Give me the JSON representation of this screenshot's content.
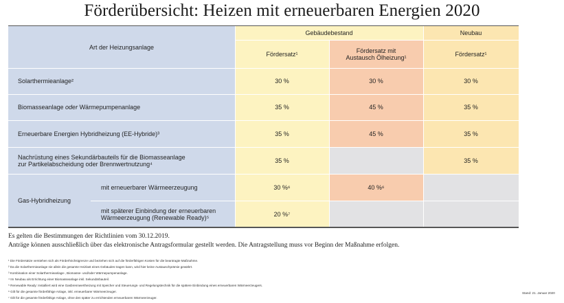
{
  "title": "Förderübersicht: Heizen mit erneuerbaren Energien 2020",
  "table": {
    "header": {
      "art": "Art der Heizungsanlage",
      "gebaeudebestand": "Gebäudebestand",
      "neubau": "Neubau",
      "foerdersatz_bestand": "Fördersatz¹",
      "foerdersatz_oel_line1": "Fördersatz mit",
      "foerdersatz_oel_line2": "Austausch Ölheizung¹",
      "foerdersatz_neubau": "Fördersatz¹"
    },
    "rows": {
      "solar": {
        "label": "Solarthermieanlage²",
        "bestand": "30 %",
        "oel": "30 %",
        "neubau": "30 %"
      },
      "biomasse": {
        "label_a": "Biomasseanlage ",
        "label_b": "oder",
        "label_c": " Wärmepumpenanlage",
        "bestand": "35 %",
        "oel": "45 %",
        "neubau": "35 %"
      },
      "ee_hybrid": {
        "label": "Erneuerbare Energien Hybridheizung (EE-Hybride)³",
        "bestand": "35 %",
        "oel": "45 %",
        "neubau": "35 %"
      },
      "nachruestung": {
        "label_line1": "Nachrüstung eines Sekundärbauteils für die Biomasseanlage",
        "label_line2": "zur Partikelabscheidung oder Brennwertnutzung⁴",
        "bestand": "35 %",
        "neubau": "35 %"
      },
      "gas": {
        "label": "Gas-Hybridheizung",
        "sub1": {
          "label": "mit erneuerbarer Wärmeerzeugung",
          "bestand": "30 %⁶",
          "oel": "40 %⁶"
        },
        "sub2": {
          "label_line1": "mit späterer Einbindung der erneuerbaren",
          "label_line2": "Wärmeerzeugung (Renewable Ready)⁵",
          "bestand": "20 %⁷"
        }
      }
    }
  },
  "notes": {
    "line1": "Es gelten die Bestimmungen der Richtlinien vom 30.12.2019.",
    "line2": "Anträge können ausschließlich über das elektronische Antragsformular gestellt werden. Die Antragstellung muss vor Beginn der Maßnahme erfolgen."
  },
  "footnotes": [
    "¹ Die Fördersätze verstehen sich als Förderhöchstgrenze und beziehen sich auf die förderfähigen Kosten für die beantragte Maßnahme.",
    "² Da die Solarthermieanlage nie allein die gesamte Heizlast eines Gebäudes tragen kann, wird hier keine Austauschprämie gewährt.",
    "³ Kombination einer Solarthermieanlage-, Biomasse- und/oder Wärmepumpenanlage.",
    "⁴ Im Neubau als Errichtung einer Biomasseanlage inkl. Sekundärbauteil.",
    "⁵ Renewable Ready: Installiert wird eine Gasbrennwertheizung mit Speicher und Steuerungs- und Regelungstechnik für die spätere Einbindung eines erneuerbaren Wärmeerzeugers.",
    "⁶ Gilt für die gesamte förderfähige Anlage, inkl. erneuerbarer Wärmeerzeuger.",
    "⁷ Gilt für die gesamte förderfähige Anlage, ohne den später zu errichtenden erneuerbaren Wärmeerzeuger."
  ],
  "stand": "Stand: 21. Januar 2020",
  "colors": {
    "blue": "#cfd9ea",
    "yellow": "#fdf3c1",
    "salmon": "#f8ccae",
    "neubau_yellow": "#fce6b1",
    "grey": "#e2e2e4"
  }
}
